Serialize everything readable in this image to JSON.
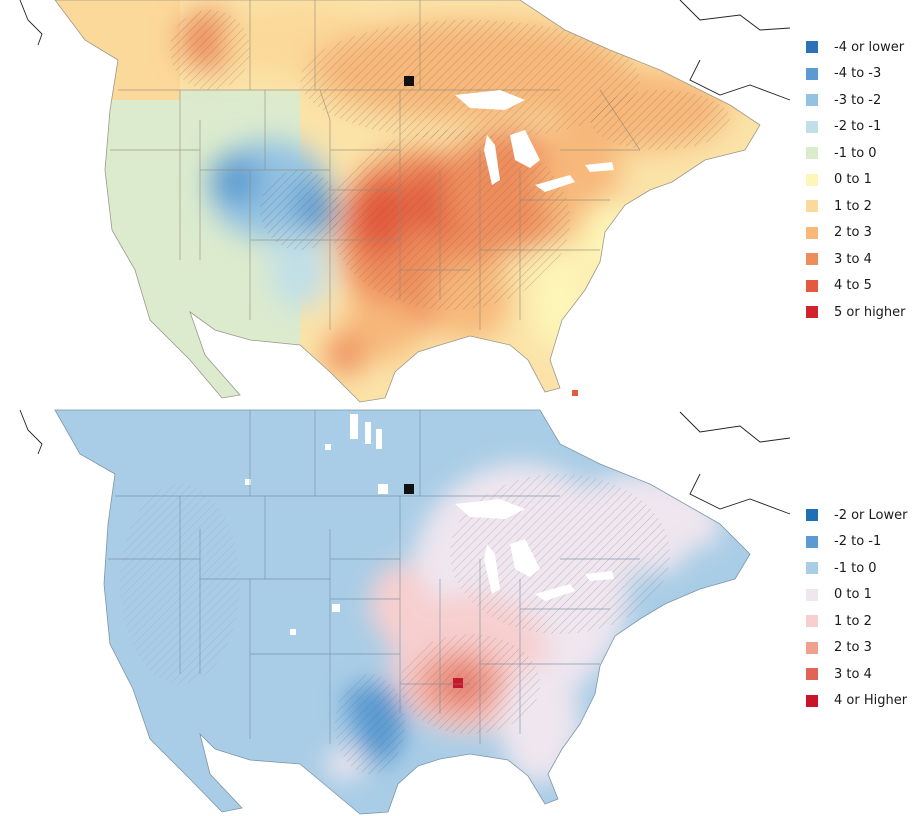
{
  "maps": [
    {
      "id": "top",
      "legend": [
        {
          "label": "-4 or lower",
          "color": "#2b72b8"
        },
        {
          "label": "-4 to -3",
          "color": "#5b9bd2"
        },
        {
          "label": "-3 to -2",
          "color": "#93c2e3"
        },
        {
          "label": "-2 to -1",
          "color": "#c1dfe8"
        },
        {
          "label": "-1 to 0",
          "color": "#dcebcd"
        },
        {
          "label": "0 to 1",
          "color": "#fdf6b8"
        },
        {
          "label": "1 to 2",
          "color": "#fbd99a"
        },
        {
          "label": "2 to 3",
          "color": "#f7b87a"
        },
        {
          "label": "3 to 4",
          "color": "#ee8d5c"
        },
        {
          "label": "4 to 5",
          "color": "#e35a3e"
        },
        {
          "label": "5 or higher",
          "color": "#d2232a"
        }
      ]
    },
    {
      "id": "bottom",
      "legend": [
        {
          "label": "-2 or Lower",
          "color": "#1f6fb4"
        },
        {
          "label": "-2 to -1",
          "color": "#5b9bd2"
        },
        {
          "label": "-1 to 0",
          "color": "#a9cde6"
        },
        {
          "label": "0 to 1",
          "color": "#efe6ef"
        },
        {
          "label": "1 to 2",
          "color": "#f7cfcf"
        },
        {
          "label": "2 to 3",
          "color": "#f0a08f"
        },
        {
          "label": "3 to 4",
          "color": "#e06558"
        },
        {
          "label": "4 or Higher",
          "color": "#c9142a"
        }
      ]
    }
  ]
}
